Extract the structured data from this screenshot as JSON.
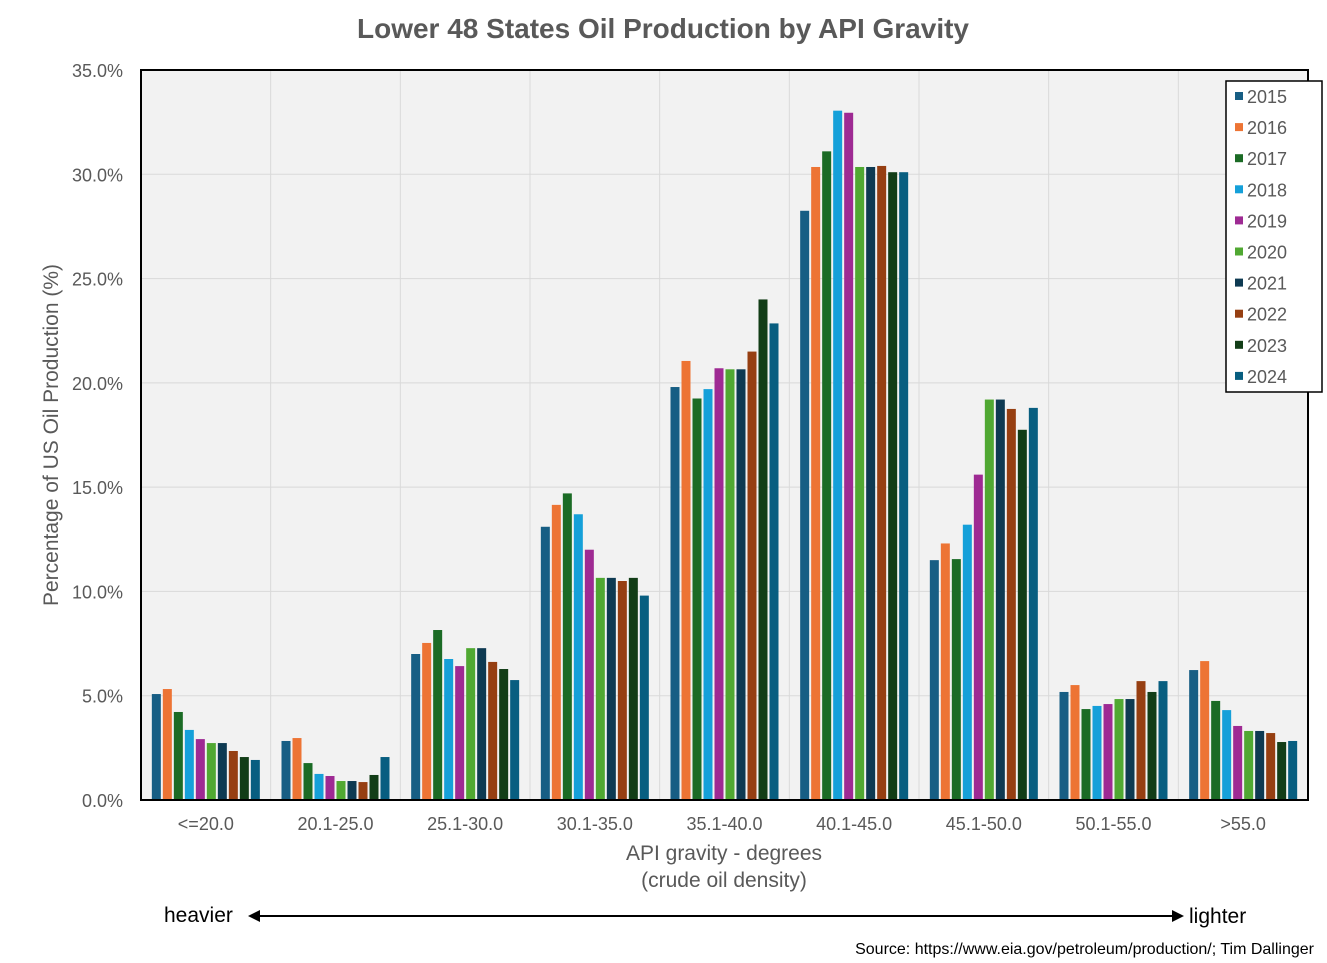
{
  "chart_data": {
    "type": "bar",
    "title": "Lower 48 States Oil Production by API Gravity",
    "xlabel": [
      "API gravity - degrees",
      "(crude oil density)"
    ],
    "ylabel": "Percentage of US Oil Production (%)",
    "ylim": [
      0,
      35
    ],
    "yticks": [
      "0.0%",
      "5.0%",
      "10.0%",
      "15.0%",
      "20.0%",
      "25.0%",
      "30.0%",
      "35.0%"
    ],
    "grid": true,
    "legend_position": "top-right",
    "categories": [
      "<=20.0",
      "20.1-25.0",
      "25.1-30.0",
      "30.1-35.0",
      "35.1-40.0",
      "40.1-45.0",
      "45.1-50.0",
      "50.1-55.0",
      ">55.0"
    ],
    "series": [
      {
        "name": "2015",
        "color": "#175e84",
        "values": [
          5.08,
          2.83,
          7.0,
          13.1,
          19.8,
          28.25,
          11.5,
          5.18,
          6.23
        ]
      },
      {
        "name": "2016",
        "color": "#ed7434",
        "values": [
          5.32,
          2.97,
          7.53,
          14.15,
          21.05,
          30.35,
          12.3,
          5.51,
          6.66
        ]
      },
      {
        "name": "2017",
        "color": "#1b6b25",
        "values": [
          4.22,
          1.77,
          8.15,
          14.7,
          19.25,
          31.1,
          11.55,
          4.36,
          4.75
        ]
      },
      {
        "name": "2018",
        "color": "#15a0d9",
        "values": [
          3.36,
          1.25,
          6.76,
          13.7,
          19.7,
          33.05,
          13.2,
          4.51,
          4.31
        ]
      },
      {
        "name": "2019",
        "color": "#9e2a93",
        "values": [
          2.92,
          1.15,
          6.42,
          12.0,
          20.7,
          32.95,
          15.6,
          4.6,
          3.55
        ]
      },
      {
        "name": "2020",
        "color": "#50a832",
        "values": [
          2.73,
          0.91,
          7.28,
          10.65,
          20.65,
          30.35,
          19.2,
          4.84,
          3.31
        ]
      },
      {
        "name": "2021",
        "color": "#0e3a52",
        "values": [
          2.73,
          0.91,
          7.28,
          10.65,
          20.65,
          30.35,
          19.2,
          4.84,
          3.31
        ]
      },
      {
        "name": "2022",
        "color": "#963f12",
        "values": [
          2.35,
          0.86,
          6.62,
          10.5,
          21.5,
          30.4,
          18.75,
          5.7,
          3.21
        ]
      },
      {
        "name": "2023",
        "color": "#123d17",
        "values": [
          2.06,
          1.2,
          6.28,
          10.65,
          24.0,
          30.1,
          17.75,
          5.18,
          2.78
        ]
      },
      {
        "name": "2024",
        "color": "#085e80",
        "values": [
          1.92,
          2.06,
          5.75,
          9.8,
          22.85,
          30.1,
          18.8,
          5.7,
          2.83
        ]
      }
    ],
    "annotations": {
      "heavier": "heavier",
      "lighter": "lighter",
      "source": "Source: https://www.eia.gov/petroleum/production/; Tim Dallinger"
    }
  }
}
